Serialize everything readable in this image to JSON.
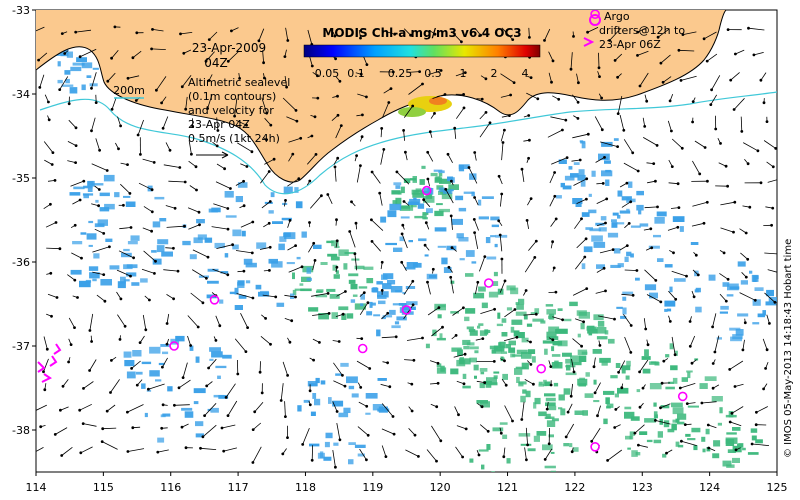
{
  "map": {
    "title": "MODIS Chl-a mg/m3 v6.4 OC3",
    "date": "23-Apr-2009",
    "time": "04Z",
    "contour_label": "200m",
    "altimetry_lines": [
      "Altimetric sealevel",
      "(0.1m contours)",
      "and velocity for",
      "23-Apr 04Z",
      "0.5m/s (1kt 24h)"
    ],
    "argo_lines": [
      "Argo",
      "drifters@12h to",
      "23-Apr 06Z"
    ],
    "credit": "© IMOS 05-May-2013 14:18:43 Hobart time",
    "colorbar_ticks": [
      "0.05",
      "0.1",
      "0.25",
      "0.5",
      "1",
      "2",
      "4"
    ],
    "colors": {
      "land": "#fbc98e",
      "coast": "#000000",
      "bathymetry": "#40c8d8",
      "marker": "#ff00ff",
      "chl_low": "#3aa0e8",
      "chl_mid": "#3cb87c",
      "chl_high": "#e8d010"
    }
  },
  "chart_data": {
    "type": "map",
    "xlim": [
      114,
      125
    ],
    "ylim": [
      -38.5,
      -33
    ],
    "x_ticks": [
      114,
      115,
      116,
      117,
      118,
      119,
      120,
      121,
      122,
      123,
      124,
      125
    ],
    "y_ticks": [
      -33,
      -34,
      -35,
      -36,
      -37,
      -38
    ],
    "argo_floats": [
      [
        116.65,
        -36.45
      ],
      [
        116.05,
        -37.0
      ],
      [
        118.85,
        -37.03
      ],
      [
        119.8,
        -35.15
      ],
      [
        119.5,
        -36.57
      ],
      [
        120.72,
        -36.25
      ],
      [
        121.5,
        -37.27
      ],
      [
        123.6,
        -37.6
      ],
      [
        122.3,
        -38.2
      ],
      [
        122.3,
        -33.05
      ]
    ]
  }
}
